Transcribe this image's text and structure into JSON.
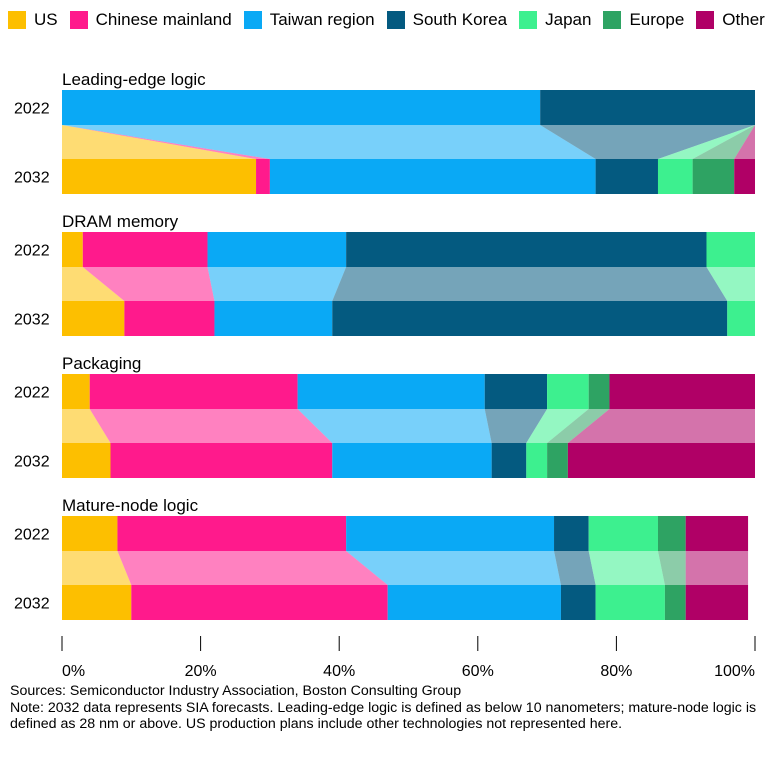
{
  "chart_data": {
    "type": "bar",
    "stacked": true,
    "orientation": "horizontal",
    "series": [
      {
        "name": "US",
        "color": "#FDBF00"
      },
      {
        "name": "Chinese mainland",
        "color": "#FF1A8C"
      },
      {
        "name": "Taiwan region",
        "color": "#0AA9F5"
      },
      {
        "name": "South Korea",
        "color": "#045A80"
      },
      {
        "name": "Japan",
        "color": "#3DF08F"
      },
      {
        "name": "Europe",
        "color": "#2EA363"
      },
      {
        "name": "Other",
        "color": "#B00066"
      }
    ],
    "panels": [
      {
        "title": "Leading-edge logic",
        "rows": [
          {
            "label": "2022",
            "values": [
              0,
              0,
              69,
              31,
              0,
              0,
              0
            ]
          },
          {
            "label": "2032",
            "values": [
              28,
              2,
              47,
              9,
              5,
              6,
              3
            ]
          }
        ]
      },
      {
        "title": "DRAM memory",
        "rows": [
          {
            "label": "2022",
            "values": [
              3,
              18,
              20,
              52,
              7,
              0,
              0
            ]
          },
          {
            "label": "2032",
            "values": [
              9,
              13,
              17,
              57,
              4,
              0,
              0
            ]
          }
        ]
      },
      {
        "title": "Packaging",
        "rows": [
          {
            "label": "2022",
            "values": [
              4,
              30,
              27,
              9,
              6,
              3,
              21
            ]
          },
          {
            "label": "2032",
            "values": [
              7,
              32,
              23,
              5,
              3,
              3,
              27
            ]
          }
        ]
      },
      {
        "title": "Mature-node logic",
        "rows": [
          {
            "label": "2022",
            "values": [
              8,
              33,
              30,
              5,
              10,
              4,
              9
            ]
          },
          {
            "label": "2032",
            "values": [
              10,
              37,
              25,
              5,
              10,
              3,
              9
            ]
          }
        ]
      }
    ],
    "x_axis": {
      "ticks": [
        "0%",
        "20%",
        "40%",
        "60%",
        "80%",
        "100%"
      ],
      "range": [
        0,
        100
      ]
    },
    "legend_position": "top-left",
    "grid": false
  },
  "footer": {
    "sources": "Sources: Semiconductor Industry Association, Boston Consulting Group",
    "note": "Note: 2032 data represents SIA forecasts. Leading-edge logic is defined as below 10 nanometers; mature-node logic is defined as 28 nm or above. US production plans include other technologies not represented here."
  }
}
